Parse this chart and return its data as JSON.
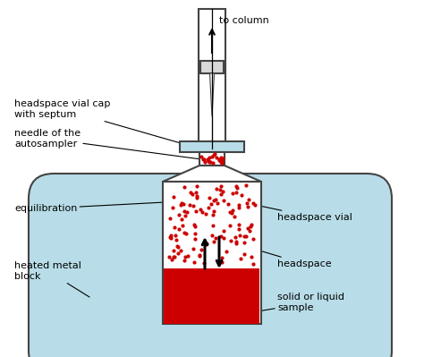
{
  "bg_color": "#ffffff",
  "light_blue": "#b8dde8",
  "red_sample": "#cc0000",
  "vial_outline": "#444444",
  "dot_color": "#cc0000",
  "text_color": "#000000",
  "labels": {
    "to_column": "to column",
    "vial_cap": "headspace vial cap\nwith septum",
    "needle": "needle of the\nautosampler",
    "equilibration": "equilibration",
    "heated_block": "heated metal\nblock",
    "headspace_vial": "headspace vial",
    "headspace": "headspace",
    "solid_liquid": "solid or liquid\nsample"
  },
  "figsize": [
    4.74,
    3.99
  ],
  "dpi": 100
}
